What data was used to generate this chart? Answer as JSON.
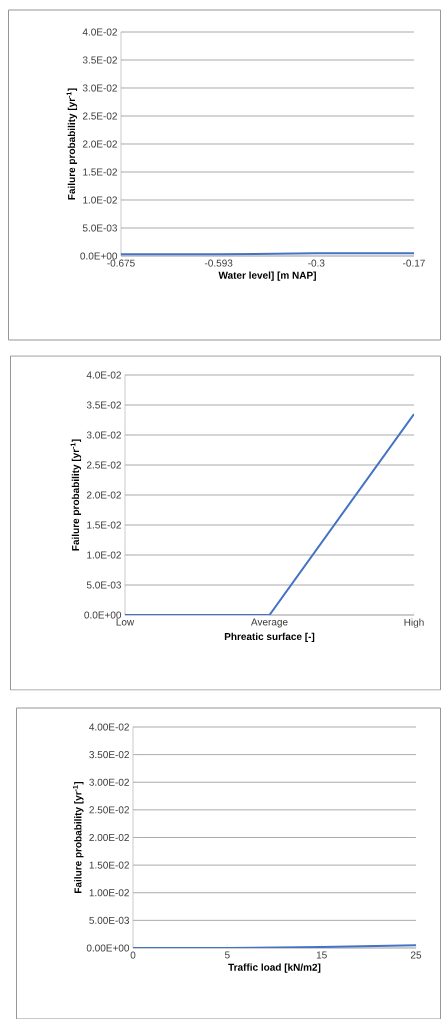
{
  "chart_data": [
    {
      "type": "line",
      "categories": [
        "-0.675",
        "-0.593",
        "-0.3",
        "-0.17"
      ],
      "values": [
        0.0003,
        0.0003,
        0.0005,
        0.0005
      ],
      "color": "#4472c4",
      "xlabel": "Water level] [m NAP]",
      "ylabel": "Failure probability [yr$^{-1}$]",
      "ylim": [
        0,
        0.04
      ],
      "grid": "y",
      "yticks": [
        {
          "value": 0,
          "label": "0.0E+00"
        },
        {
          "value": 0.005,
          "label": "5.0E-03"
        },
        {
          "value": 0.01,
          "label": "1.0E-02"
        },
        {
          "value": 0.015,
          "label": "1.5E-02"
        },
        {
          "value": 0.02,
          "label": "2.0E-02"
        },
        {
          "value": 0.025,
          "label": "2.5E-02"
        },
        {
          "value": 0.03,
          "label": "3.0E-02"
        },
        {
          "value": 0.035,
          "label": "3.5E-02"
        },
        {
          "value": 0.04,
          "label": "4.0E-02"
        }
      ]
    },
    {
      "type": "line",
      "categories": [
        "Low",
        "Average",
        "High"
      ],
      "values": [
        0,
        0,
        0.0335
      ],
      "color": "#4472c4",
      "xlabel": "Phreatic surface [-]",
      "ylabel": "Failure probability [yr$^{-1}$]",
      "ylim": [
        0,
        0.04
      ],
      "grid": "y",
      "yticks": [
        {
          "value": 0,
          "label": "0.0E+00"
        },
        {
          "value": 0.005,
          "label": "5.0E-03"
        },
        {
          "value": 0.01,
          "label": "1.0E-02"
        },
        {
          "value": 0.015,
          "label": "1.5E-02"
        },
        {
          "value": 0.02,
          "label": "2.0E-02"
        },
        {
          "value": 0.025,
          "label": "2.5E-02"
        },
        {
          "value": 0.03,
          "label": "3.0E-02"
        },
        {
          "value": 0.035,
          "label": "3.5E-02"
        },
        {
          "value": 0.04,
          "label": "4.0E-02"
        }
      ]
    },
    {
      "type": "line",
      "categories": [
        "0",
        "5",
        "15",
        "25"
      ],
      "values": [
        0,
        0,
        0.0002,
        0.0005
      ],
      "color": "#4472c4",
      "xlabel": "Traffic load [kN/m2]",
      "ylabel": "Failure probability [yr$^{-1}$]",
      "ylim": [
        0,
        0.04
      ],
      "grid": "y",
      "yticks": [
        {
          "value": 0,
          "label": "0.00E+00"
        },
        {
          "value": 0.005,
          "label": "5.00E-03"
        },
        {
          "value": 0.01,
          "label": "1.00E-02"
        },
        {
          "value": 0.015,
          "label": "1.50E-02"
        },
        {
          "value": 0.02,
          "label": "2.00E-02"
        },
        {
          "value": 0.025,
          "label": "2.50E-02"
        },
        {
          "value": 0.03,
          "label": "3.00E-02"
        },
        {
          "value": 0.035,
          "label": "3.50E-02"
        },
        {
          "value": 0.04,
          "label": "4.00E-02"
        }
      ]
    }
  ]
}
